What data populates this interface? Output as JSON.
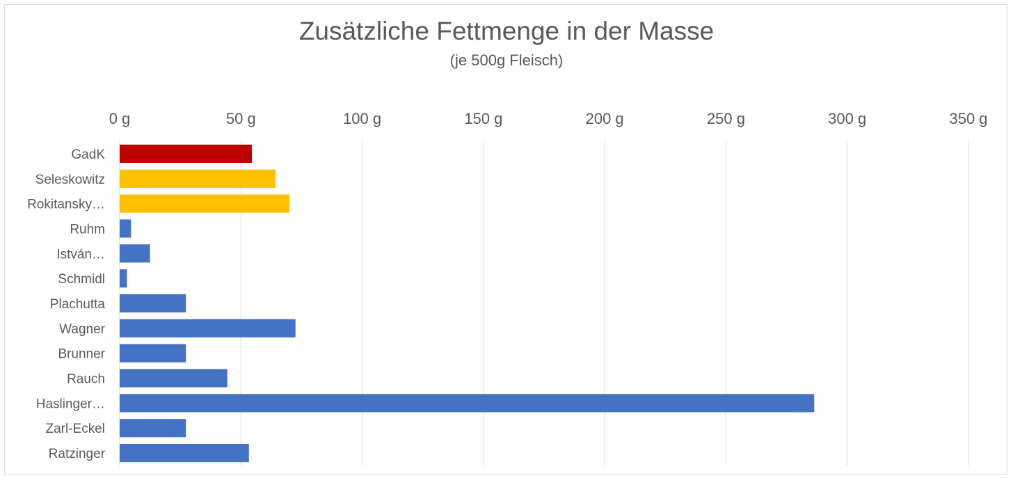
{
  "chart_data": {
    "type": "bar",
    "orientation": "horizontal",
    "title": "Zusätzliche Fettmenge in der Masse",
    "subtitle": "(je 500g Fleisch)",
    "xlabel": "",
    "ylabel": "",
    "unit": "g",
    "xlim": [
      0,
      350
    ],
    "x_ticks": [
      "0 g",
      "50 g",
      "100 g",
      "150 g",
      "200 g",
      "250 g",
      "300 g",
      "350 g"
    ],
    "x_axis_position": "top",
    "grid": true,
    "legend": "none",
    "categories": [
      "GadK",
      "Seleskowitz",
      "Rokitansky…",
      "Ruhm",
      "István…",
      "Schmidl",
      "Plachutta",
      "Wagner",
      "Brunner",
      "Rauch",
      "Haslinger…",
      "Zarl-Eckel",
      "Ratzinger"
    ],
    "values": [
      54.5,
      64.3,
      70,
      4.7,
      12.5,
      3,
      27.3,
      72.5,
      27.3,
      44.4,
      286.4,
      27.3,
      53.3
    ],
    "colors": [
      "#c00000",
      "#ffc000",
      "#ffc000",
      "#4472c4",
      "#4472c4",
      "#4472c4",
      "#4472c4",
      "#4472c4",
      "#4472c4",
      "#4472c4",
      "#4472c4",
      "#4472c4",
      "#4472c4"
    ],
    "gridline_color": "#d9d9d9",
    "text_color": "#595959"
  }
}
